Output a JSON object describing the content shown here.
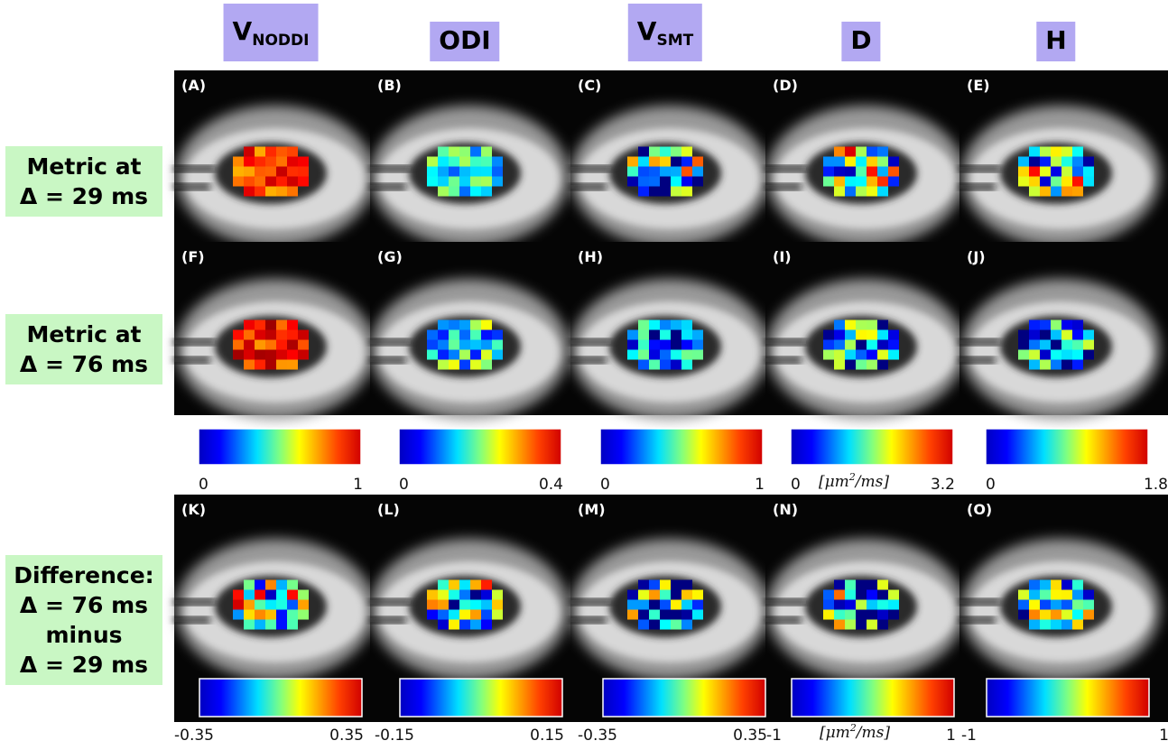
{
  "column_headers": [
    {
      "text": "V",
      "sub": "NODDI"
    },
    {
      "text": "ODI"
    },
    {
      "text": "V",
      "sub": "SMT"
    },
    {
      "text": "D"
    },
    {
      "text": "H"
    }
  ],
  "row_labels": [
    [
      "Metric at",
      "Δ = 29 ms"
    ],
    [
      "Metric at",
      "Δ = 76 ms"
    ],
    [
      "Difference:",
      "Δ = 76 ms",
      "minus",
      "Δ = 29 ms"
    ]
  ],
  "panels": [
    [
      "(A)",
      "(B)",
      "(C)",
      "(D)",
      "(E)"
    ],
    [
      "(F)",
      "(G)",
      "(H)",
      "(I)",
      "(J)"
    ],
    [
      "(K)",
      "(L)",
      "(M)",
      "(N)",
      "(O)"
    ]
  ],
  "colorbars": [
    [
      {
        "min": "0",
        "max": "1"
      },
      {
        "min": "0",
        "max": "0.4"
      },
      {
        "min": "0",
        "max": "1"
      },
      {
        "min": "0",
        "max": "3.2",
        "unit": {
          "base": "[μm",
          "sup": "2",
          "rest": "/ms]"
        }
      },
      {
        "min": "0",
        "max": "1.8"
      }
    ],
    [
      {
        "min": "-0.35",
        "max": "0.35"
      },
      {
        "min": "-0.15",
        "max": "0.15"
      },
      {
        "min": "-0.35",
        "max": "0.35"
      },
      {
        "min": "-1",
        "max": "1",
        "unit": {
          "base": "[μm",
          "sup": "2",
          "rest": "/ms]"
        }
      },
      {
        "min": "-1",
        "max": "1"
      }
    ]
  ]
}
